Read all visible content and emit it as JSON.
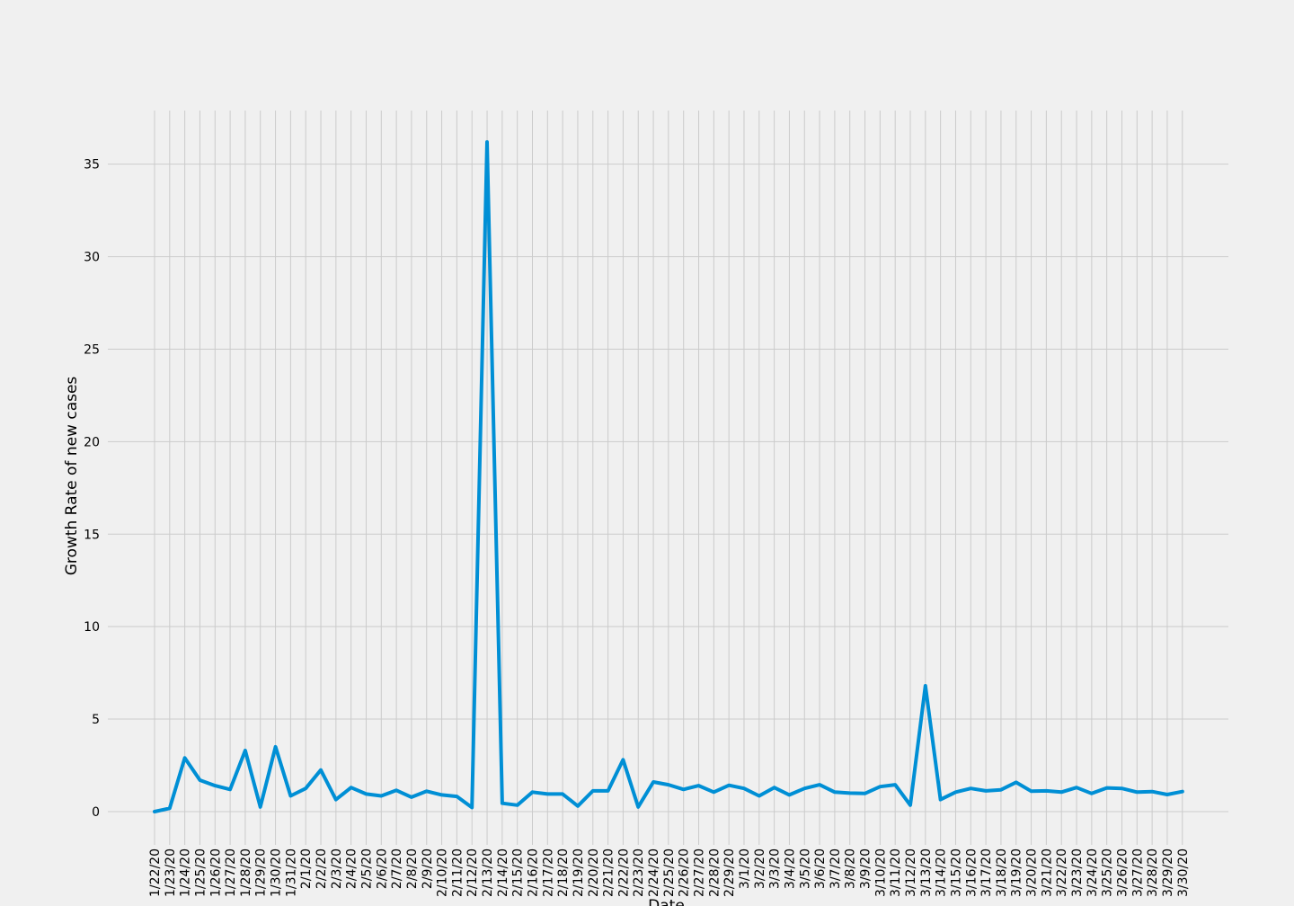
{
  "chart_data": {
    "type": "line",
    "title": "",
    "xlabel": "Date",
    "ylabel": "Growth Rate of new cases",
    "ylim": [
      -1.8,
      37.9
    ],
    "yticks": [
      0,
      5,
      10,
      15,
      20,
      25,
      30,
      35
    ],
    "grid": true,
    "line_color": "#008fd5",
    "background_color": "#f0f0f0",
    "x": [
      "1/22/20",
      "1/23/20",
      "1/24/20",
      "1/25/20",
      "1/26/20",
      "1/27/20",
      "1/28/20",
      "1/29/20",
      "1/30/20",
      "1/31/20",
      "2/1/20",
      "2/2/20",
      "2/3/20",
      "2/4/20",
      "2/5/20",
      "2/6/20",
      "2/7/20",
      "2/8/20",
      "2/9/20",
      "2/10/20",
      "2/11/20",
      "2/12/20",
      "2/13/20",
      "2/14/20",
      "2/15/20",
      "2/16/20",
      "2/17/20",
      "2/18/20",
      "2/19/20",
      "2/20/20",
      "2/21/20",
      "2/22/20",
      "2/23/20",
      "2/24/20",
      "2/25/20",
      "2/26/20",
      "2/27/20",
      "2/28/20",
      "2/29/20",
      "3/1/20",
      "3/2/20",
      "3/3/20",
      "3/4/20",
      "3/5/20",
      "3/6/20",
      "3/7/20",
      "3/8/20",
      "3/9/20",
      "3/10/20",
      "3/11/20",
      "3/12/20",
      "3/13/20",
      "3/14/20",
      "3/15/20",
      "3/16/20",
      "3/17/20",
      "3/18/20",
      "3/19/20",
      "3/20/20",
      "3/21/20",
      "3/22/20",
      "3/23/20",
      "3/24/20",
      "3/25/20",
      "3/26/20",
      "3/27/20",
      "3/28/20",
      "3/29/20",
      "3/30/20"
    ],
    "values": [
      0.0,
      0.18,
      2.9,
      1.7,
      1.4,
      1.2,
      3.3,
      0.25,
      3.5,
      0.85,
      1.25,
      2.25,
      0.65,
      1.3,
      0.95,
      0.85,
      1.15,
      0.78,
      1.1,
      0.9,
      0.82,
      0.22,
      36.2,
      0.45,
      0.35,
      1.05,
      0.95,
      0.95,
      0.3,
      1.12,
      1.12,
      2.8,
      0.25,
      1.6,
      1.45,
      1.2,
      1.4,
      1.05,
      1.42,
      1.25,
      0.85,
      1.3,
      0.9,
      1.25,
      1.45,
      1.05,
      1.0,
      0.98,
      1.35,
      1.45,
      0.35,
      6.8,
      0.65,
      1.05,
      1.25,
      1.12,
      1.18,
      1.58,
      1.1,
      1.12,
      1.05,
      1.3,
      0.98,
      1.28,
      1.25,
      1.05,
      1.08,
      0.92,
      1.08
    ]
  }
}
